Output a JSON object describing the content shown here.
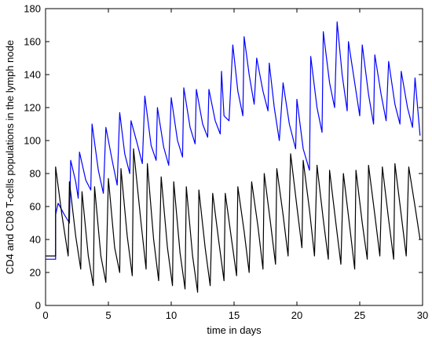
{
  "chart_data": {
    "type": "line",
    "title": "",
    "xlabel": "time in days",
    "ylabel": "CD4 and CD8 T-cells populations in the lymph node",
    "xlim": [
      0,
      30
    ],
    "ylim": [
      0,
      180
    ],
    "xticks": [
      0,
      5,
      10,
      15,
      20,
      25,
      30
    ],
    "yticks": [
      0,
      20,
      40,
      60,
      80,
      100,
      120,
      140,
      160,
      180
    ],
    "grid": false,
    "legend": "none",
    "series": [
      {
        "color": "#0000ff",
        "x": [
          0.0,
          0.8,
          0.8,
          1.0,
          1.5,
          1.9,
          2.0,
          2.4,
          2.6,
          2.7,
          3.2,
          3.6,
          3.7,
          4.2,
          4.6,
          4.8,
          5.3,
          5.7,
          5.9,
          6.3,
          6.7,
          6.8,
          7.3,
          7.7,
          7.9,
          8.4,
          8.8,
          8.9,
          9.4,
          9.8,
          10.0,
          10.5,
          10.9,
          11.0,
          11.5,
          11.9,
          12.0,
          12.5,
          12.9,
          13.0,
          13.5,
          13.9,
          14.0,
          14.2,
          14.6,
          14.9,
          15.3,
          15.7,
          15.8,
          16.2,
          16.6,
          16.8,
          17.3,
          17.7,
          17.8,
          18.2,
          18.6,
          18.9,
          19.4,
          19.9,
          20.0,
          20.5,
          21.0,
          21.1,
          21.6,
          22.0,
          22.1,
          22.6,
          23.0,
          23.2,
          23.6,
          24.0,
          24.1,
          24.6,
          25.0,
          25.2,
          25.7,
          26.1,
          26.2,
          26.7,
          27.1,
          27.3,
          27.8,
          28.2,
          28.3,
          28.8,
          29.2,
          29.4,
          29.8
        ],
        "y": [
          28,
          28,
          55,
          62,
          55,
          50,
          88,
          75,
          65,
          93,
          76,
          70,
          110,
          82,
          68,
          108,
          88,
          73,
          117,
          92,
          80,
          112,
          98,
          86,
          127,
          97,
          88,
          120,
          96,
          85,
          126,
          100,
          90,
          132,
          108,
          98,
          131,
          110,
          102,
          131,
          112,
          104,
          142,
          115,
          112,
          158,
          130,
          115,
          163,
          140,
          122,
          150,
          130,
          118,
          147,
          120,
          100,
          135,
          110,
          95,
          125,
          95,
          82,
          151,
          120,
          105,
          166,
          135,
          120,
          172,
          140,
          118,
          160,
          135,
          115,
          158,
          128,
          110,
          152,
          128,
          112,
          148,
          122,
          110,
          142,
          120,
          108,
          138,
          103
        ]
      },
      {
        "color": "#000000",
        "x": [
          0.0,
          0.8,
          0.8,
          1.3,
          1.8,
          1.9,
          2.4,
          2.8,
          2.9,
          3.4,
          3.8,
          3.9,
          4.4,
          4.8,
          5.0,
          5.5,
          5.9,
          6.0,
          6.5,
          6.9,
          7.0,
          7.6,
          8.0,
          8.1,
          8.6,
          9.0,
          9.2,
          9.7,
          10.1,
          10.2,
          10.7,
          11.1,
          11.2,
          11.7,
          12.1,
          12.2,
          12.7,
          13.1,
          13.3,
          13.8,
          14.2,
          14.3,
          14.8,
          15.2,
          15.3,
          15.8,
          16.2,
          16.4,
          16.9,
          17.3,
          17.4,
          17.9,
          18.3,
          18.4,
          18.9,
          19.3,
          19.5,
          20.0,
          20.4,
          20.5,
          21.0,
          21.4,
          21.6,
          22.1,
          22.5,
          22.6,
          23.1,
          23.5,
          23.7,
          24.2,
          24.6,
          24.7,
          25.2,
          25.6,
          25.7,
          26.2,
          26.6,
          26.8,
          27.3,
          27.7,
          27.8,
          28.3,
          28.7,
          28.9,
          29.4,
          29.8
        ],
        "y": [
          30,
          30,
          84,
          55,
          30,
          75,
          42,
          22,
          69,
          30,
          12,
          72,
          30,
          14,
          77,
          35,
          20,
          83,
          42,
          18,
          95,
          50,
          22,
          86,
          40,
          15,
          78,
          35,
          12,
          75,
          32,
          10,
          72,
          30,
          8,
          70,
          35,
          12,
          68,
          38,
          15,
          68,
          40,
          18,
          72,
          45,
          20,
          75,
          48,
          22,
          80,
          50,
          25,
          83,
          55,
          30,
          92,
          60,
          35,
          88,
          58,
          30,
          85,
          52,
          28,
          82,
          50,
          25,
          80,
          48,
          22,
          82,
          50,
          28,
          85,
          55,
          30,
          84,
          52,
          28,
          86,
          55,
          30,
          84,
          60,
          40
        ]
      }
    ]
  }
}
